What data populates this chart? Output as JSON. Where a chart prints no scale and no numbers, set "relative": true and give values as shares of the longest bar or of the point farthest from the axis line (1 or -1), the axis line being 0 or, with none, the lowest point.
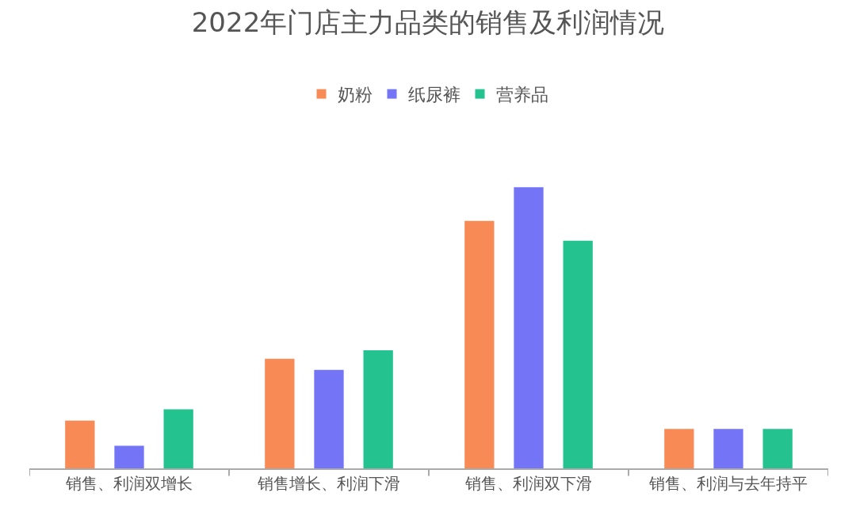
{
  "chart_data": {
    "type": "bar",
    "title": "2022年门店主力品类的销售及利润情况",
    "relative": true,
    "legend": "top",
    "categories": [
      "销售、利润双增长",
      "销售增长、利润下滑",
      "销售、利润双下滑",
      "销售、利润与去年持平"
    ],
    "series": [
      {
        "name": "奶粉",
        "color": "#f78a55",
        "values": [
          0.17,
          0.39,
          0.88,
          0.14
        ]
      },
      {
        "name": "纸尿裤",
        "color": "#7374f6",
        "values": [
          0.08,
          0.35,
          1,
          0.14
        ]
      },
      {
        "name": "营养品",
        "color": "#23c28f",
        "values": [
          0.21,
          0.42,
          0.81,
          0.14
        ]
      }
    ]
  }
}
